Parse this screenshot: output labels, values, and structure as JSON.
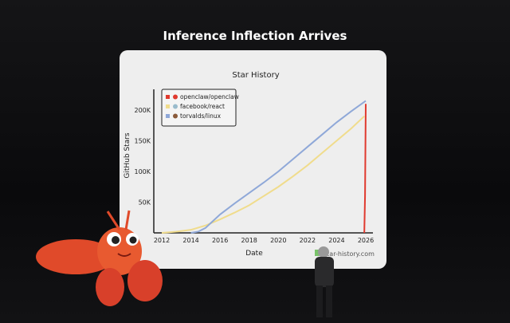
{
  "slide": {
    "title": "Inference Inflection Arrives"
  },
  "chart_data": {
    "type": "line",
    "title": "Star History",
    "xlabel": "Date",
    "ylabel": "GitHub Stars",
    "xlim": [
      2011.8,
      2026.3
    ],
    "ylim": [
      0,
      225000
    ],
    "x_ticks": [
      "2012",
      "2014",
      "2016",
      "2018",
      "2020",
      "2022",
      "2024",
      "2026"
    ],
    "y_ticks": [
      {
        "v": 50000,
        "label": "50K"
      },
      {
        "v": 100000,
        "label": "100K"
      },
      {
        "v": 150000,
        "label": "150K"
      },
      {
        "v": 200000,
        "label": "200K"
      }
    ],
    "legend_placement": "top-left",
    "watermark": "star-history.com",
    "series": [
      {
        "name": "openclaw/openclaw",
        "color": "#e03a2f",
        "x": [
          2025.9,
          2025.95,
          2026.0
        ],
        "y": [
          0,
          60000,
          210000
        ]
      },
      {
        "name": "facebook/react",
        "color": "#f0dc8c",
        "x": [
          2012,
          2013,
          2014,
          2015,
          2016,
          2017,
          2018,
          2019,
          2020,
          2021,
          2022,
          2023,
          2024,
          2025,
          2025.9
        ],
        "y": [
          0,
          2000,
          5000,
          12000,
          22000,
          33000,
          45000,
          60000,
          75000,
          92000,
          110000,
          130000,
          150000,
          170000,
          190000
        ]
      },
      {
        "name": "torvalds/linux",
        "color": "#8fa8d8",
        "x": [
          2014,
          2014.5,
          2015,
          2016,
          2017,
          2018,
          2019,
          2020,
          2021,
          2022,
          2023,
          2024,
          2025,
          2026
        ],
        "y": [
          0,
          2000,
          8000,
          30000,
          48000,
          65000,
          82000,
          100000,
          120000,
          140000,
          160000,
          180000,
          198000,
          215000
        ]
      }
    ]
  }
}
